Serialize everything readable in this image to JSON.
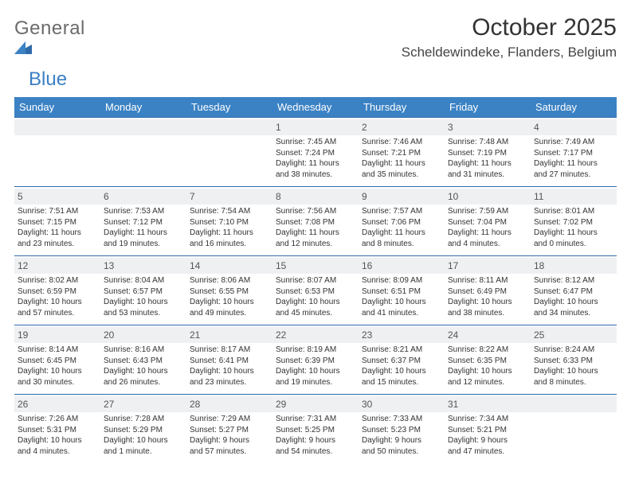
{
  "brand": {
    "word1": "General",
    "word2": "Blue"
  },
  "title": "October 2025",
  "location": "Scheldewindeke, Flanders, Belgium",
  "colors": {
    "header_bg": "#3b82c4",
    "header_text": "#ffffff",
    "rule": "#2f6aa8",
    "daynum_bg": "#eef0f2",
    "text": "#333333",
    "logo_gray": "#6b6b6b",
    "logo_blue": "#3b7fc4"
  },
  "days_of_week": [
    "Sunday",
    "Monday",
    "Tuesday",
    "Wednesday",
    "Thursday",
    "Friday",
    "Saturday"
  ],
  "weeks": [
    [
      {
        "n": "",
        "sr": "",
        "ss": "",
        "dl1": "",
        "dl2": ""
      },
      {
        "n": "",
        "sr": "",
        "ss": "",
        "dl1": "",
        "dl2": ""
      },
      {
        "n": "",
        "sr": "",
        "ss": "",
        "dl1": "",
        "dl2": ""
      },
      {
        "n": "1",
        "sr": "Sunrise: 7:45 AM",
        "ss": "Sunset: 7:24 PM",
        "dl1": "Daylight: 11 hours",
        "dl2": "and 38 minutes."
      },
      {
        "n": "2",
        "sr": "Sunrise: 7:46 AM",
        "ss": "Sunset: 7:21 PM",
        "dl1": "Daylight: 11 hours",
        "dl2": "and 35 minutes."
      },
      {
        "n": "3",
        "sr": "Sunrise: 7:48 AM",
        "ss": "Sunset: 7:19 PM",
        "dl1": "Daylight: 11 hours",
        "dl2": "and 31 minutes."
      },
      {
        "n": "4",
        "sr": "Sunrise: 7:49 AM",
        "ss": "Sunset: 7:17 PM",
        "dl1": "Daylight: 11 hours",
        "dl2": "and 27 minutes."
      }
    ],
    [
      {
        "n": "5",
        "sr": "Sunrise: 7:51 AM",
        "ss": "Sunset: 7:15 PM",
        "dl1": "Daylight: 11 hours",
        "dl2": "and 23 minutes."
      },
      {
        "n": "6",
        "sr": "Sunrise: 7:53 AM",
        "ss": "Sunset: 7:12 PM",
        "dl1": "Daylight: 11 hours",
        "dl2": "and 19 minutes."
      },
      {
        "n": "7",
        "sr": "Sunrise: 7:54 AM",
        "ss": "Sunset: 7:10 PM",
        "dl1": "Daylight: 11 hours",
        "dl2": "and 16 minutes."
      },
      {
        "n": "8",
        "sr": "Sunrise: 7:56 AM",
        "ss": "Sunset: 7:08 PM",
        "dl1": "Daylight: 11 hours",
        "dl2": "and 12 minutes."
      },
      {
        "n": "9",
        "sr": "Sunrise: 7:57 AM",
        "ss": "Sunset: 7:06 PM",
        "dl1": "Daylight: 11 hours",
        "dl2": "and 8 minutes."
      },
      {
        "n": "10",
        "sr": "Sunrise: 7:59 AM",
        "ss": "Sunset: 7:04 PM",
        "dl1": "Daylight: 11 hours",
        "dl2": "and 4 minutes."
      },
      {
        "n": "11",
        "sr": "Sunrise: 8:01 AM",
        "ss": "Sunset: 7:02 PM",
        "dl1": "Daylight: 11 hours",
        "dl2": "and 0 minutes."
      }
    ],
    [
      {
        "n": "12",
        "sr": "Sunrise: 8:02 AM",
        "ss": "Sunset: 6:59 PM",
        "dl1": "Daylight: 10 hours",
        "dl2": "and 57 minutes."
      },
      {
        "n": "13",
        "sr": "Sunrise: 8:04 AM",
        "ss": "Sunset: 6:57 PM",
        "dl1": "Daylight: 10 hours",
        "dl2": "and 53 minutes."
      },
      {
        "n": "14",
        "sr": "Sunrise: 8:06 AM",
        "ss": "Sunset: 6:55 PM",
        "dl1": "Daylight: 10 hours",
        "dl2": "and 49 minutes."
      },
      {
        "n": "15",
        "sr": "Sunrise: 8:07 AM",
        "ss": "Sunset: 6:53 PM",
        "dl1": "Daylight: 10 hours",
        "dl2": "and 45 minutes."
      },
      {
        "n": "16",
        "sr": "Sunrise: 8:09 AM",
        "ss": "Sunset: 6:51 PM",
        "dl1": "Daylight: 10 hours",
        "dl2": "and 41 minutes."
      },
      {
        "n": "17",
        "sr": "Sunrise: 8:11 AM",
        "ss": "Sunset: 6:49 PM",
        "dl1": "Daylight: 10 hours",
        "dl2": "and 38 minutes."
      },
      {
        "n": "18",
        "sr": "Sunrise: 8:12 AM",
        "ss": "Sunset: 6:47 PM",
        "dl1": "Daylight: 10 hours",
        "dl2": "and 34 minutes."
      }
    ],
    [
      {
        "n": "19",
        "sr": "Sunrise: 8:14 AM",
        "ss": "Sunset: 6:45 PM",
        "dl1": "Daylight: 10 hours",
        "dl2": "and 30 minutes."
      },
      {
        "n": "20",
        "sr": "Sunrise: 8:16 AM",
        "ss": "Sunset: 6:43 PM",
        "dl1": "Daylight: 10 hours",
        "dl2": "and 26 minutes."
      },
      {
        "n": "21",
        "sr": "Sunrise: 8:17 AM",
        "ss": "Sunset: 6:41 PM",
        "dl1": "Daylight: 10 hours",
        "dl2": "and 23 minutes."
      },
      {
        "n": "22",
        "sr": "Sunrise: 8:19 AM",
        "ss": "Sunset: 6:39 PM",
        "dl1": "Daylight: 10 hours",
        "dl2": "and 19 minutes."
      },
      {
        "n": "23",
        "sr": "Sunrise: 8:21 AM",
        "ss": "Sunset: 6:37 PM",
        "dl1": "Daylight: 10 hours",
        "dl2": "and 15 minutes."
      },
      {
        "n": "24",
        "sr": "Sunrise: 8:22 AM",
        "ss": "Sunset: 6:35 PM",
        "dl1": "Daylight: 10 hours",
        "dl2": "and 12 minutes."
      },
      {
        "n": "25",
        "sr": "Sunrise: 8:24 AM",
        "ss": "Sunset: 6:33 PM",
        "dl1": "Daylight: 10 hours",
        "dl2": "and 8 minutes."
      }
    ],
    [
      {
        "n": "26",
        "sr": "Sunrise: 7:26 AM",
        "ss": "Sunset: 5:31 PM",
        "dl1": "Daylight: 10 hours",
        "dl2": "and 4 minutes."
      },
      {
        "n": "27",
        "sr": "Sunrise: 7:28 AM",
        "ss": "Sunset: 5:29 PM",
        "dl1": "Daylight: 10 hours",
        "dl2": "and 1 minute."
      },
      {
        "n": "28",
        "sr": "Sunrise: 7:29 AM",
        "ss": "Sunset: 5:27 PM",
        "dl1": "Daylight: 9 hours",
        "dl2": "and 57 minutes."
      },
      {
        "n": "29",
        "sr": "Sunrise: 7:31 AM",
        "ss": "Sunset: 5:25 PM",
        "dl1": "Daylight: 9 hours",
        "dl2": "and 54 minutes."
      },
      {
        "n": "30",
        "sr": "Sunrise: 7:33 AM",
        "ss": "Sunset: 5:23 PM",
        "dl1": "Daylight: 9 hours",
        "dl2": "and 50 minutes."
      },
      {
        "n": "31",
        "sr": "Sunrise: 7:34 AM",
        "ss": "Sunset: 5:21 PM",
        "dl1": "Daylight: 9 hours",
        "dl2": "and 47 minutes."
      },
      {
        "n": "",
        "sr": "",
        "ss": "",
        "dl1": "",
        "dl2": ""
      }
    ]
  ]
}
